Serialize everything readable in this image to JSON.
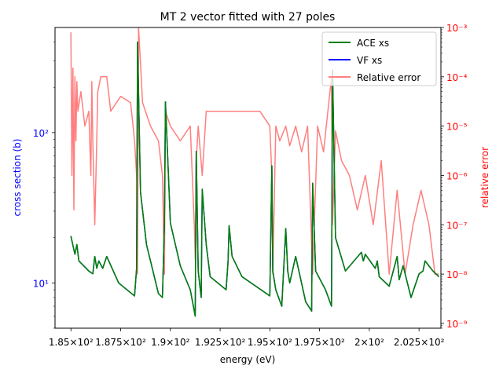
{
  "chart_data": {
    "type": "line",
    "title": "MT 2 vector fitted with 27 poles",
    "xlabel": "energy (eV)",
    "ylabel_left": "cross section (b)",
    "ylabel_right": "relative error",
    "xlim": [
      184.2,
      203.6
    ],
    "ylim_left": [
      5.0,
      500.0
    ],
    "ylim_right": [
      8e-10,
      0.001
    ],
    "yscale_left": "log",
    "yscale_right": "log",
    "grid": false,
    "legend_position": "top-right",
    "x_ticks": [
      {
        "value": 185.0,
        "label": "1.85×10²"
      },
      {
        "value": 187.5,
        "label": "1.875×10²"
      },
      {
        "value": 190.0,
        "label": "1.9×10²"
      },
      {
        "value": 192.5,
        "label": "1.925×10²"
      },
      {
        "value": 195.0,
        "label": "1.95×10²"
      },
      {
        "value": 197.5,
        "label": "1.975×10²"
      },
      {
        "value": 200.0,
        "label": "2×10²"
      },
      {
        "value": 202.5,
        "label": "2.025×10²"
      }
    ],
    "y_left_ticks": [
      {
        "value": 10,
        "label": "10¹"
      },
      {
        "value": 100,
        "label": "10²"
      }
    ],
    "y_right_ticks": [
      {
        "value": 1e-09,
        "label": "10⁻⁹"
      },
      {
        "value": 1e-08,
        "label": "10⁻⁸"
      },
      {
        "value": 1e-07,
        "label": "10⁻⁷"
      },
      {
        "value": 1e-06,
        "label": "10⁻⁶"
      },
      {
        "value": 1e-05,
        "label": "10⁻⁵"
      },
      {
        "value": 0.0001,
        "label": "10⁻⁴"
      },
      {
        "value": 0.001,
        "label": "10⁻³"
      }
    ],
    "colors": {
      "ace": "#008000",
      "vf": "#0000ff",
      "error": "#ff7f7f",
      "left_axis": "#0000ff",
      "right_axis": "#ff0000"
    },
    "series": [
      {
        "name": "ACE xs",
        "axis": "left",
        "x": [
          185.0,
          185.2,
          185.3,
          185.4,
          185.9,
          186.1,
          186.2,
          186.3,
          186.4,
          186.6,
          186.8,
          187.4,
          188.2,
          188.3,
          188.35,
          188.5,
          188.8,
          189.4,
          189.6,
          189.7,
          189.75,
          190.0,
          190.5,
          191.0,
          191.2,
          191.25,
          191.3,
          191.4,
          191.55,
          191.6,
          191.8,
          192.0,
          192.8,
          192.9,
          192.95,
          193.1,
          193.6,
          194.3,
          195.0,
          195.1,
          195.15,
          195.3,
          195.6,
          195.8,
          195.9,
          196.0,
          196.3,
          196.8,
          197.1,
          197.15,
          197.3,
          197.8,
          198.1,
          198.15,
          198.3,
          198.8,
          199.6,
          199.7,
          199.8,
          200.3,
          200.4,
          200.5,
          201.0,
          201.4,
          201.5,
          201.7,
          202.1,
          202.5,
          202.7,
          202.8,
          203.2,
          203.5
        ],
        "y": [
          20.5,
          15.5,
          18.0,
          14.0,
          12.0,
          11.5,
          15.0,
          12.5,
          14.0,
          12.5,
          15.0,
          10.0,
          8.2,
          12.5,
          400.0,
          40.0,
          18.0,
          8.5,
          8.0,
          25.0,
          160.0,
          25.0,
          13.0,
          9.0,
          6.5,
          6.0,
          75.0,
          12.0,
          8.0,
          42.0,
          18.0,
          11.0,
          9.0,
          14.0,
          24.0,
          15.0,
          11.0,
          9.5,
          8.2,
          60.0,
          12.0,
          9.0,
          7.0,
          23.0,
          12.0,
          10.0,
          15.0,
          7.5,
          6.5,
          46.0,
          12.0,
          9.0,
          7.0,
          260.0,
          20.0,
          12.0,
          16.0,
          14.0,
          15.5,
          12.5,
          14.0,
          11.0,
          9.5,
          15.0,
          10.5,
          13.0,
          8.0,
          11.5,
          12.0,
          14.0,
          12.0,
          11.0
        ]
      },
      {
        "name": "VF xs",
        "axis": "left",
        "x": [
          185.0,
          185.2,
          185.3,
          185.4,
          185.9,
          186.1,
          186.2,
          186.3,
          186.4,
          186.6,
          186.8,
          187.4,
          188.2,
          188.3,
          188.35,
          188.5,
          188.8,
          189.4,
          189.6,
          189.7,
          189.75,
          190.0,
          190.5,
          191.0,
          191.2,
          191.25,
          191.3,
          191.4,
          191.55,
          191.6,
          191.8,
          192.0,
          192.8,
          192.9,
          192.95,
          193.1,
          193.6,
          194.3,
          195.0,
          195.1,
          195.15,
          195.3,
          195.6,
          195.8,
          195.9,
          196.0,
          196.3,
          196.8,
          197.1,
          197.15,
          197.3,
          197.8,
          198.1,
          198.15,
          198.3,
          198.8,
          199.6,
          199.7,
          199.8,
          200.3,
          200.4,
          200.5,
          201.0,
          201.4,
          201.5,
          201.7,
          202.1,
          202.5,
          202.7,
          202.8,
          203.2,
          203.5
        ],
        "y": [
          20.5,
          15.5,
          18.0,
          14.0,
          12.0,
          11.5,
          15.0,
          12.5,
          14.0,
          12.5,
          15.0,
          10.0,
          8.2,
          12.5,
          400.0,
          40.0,
          18.0,
          8.5,
          8.0,
          25.0,
          160.0,
          25.0,
          13.0,
          9.0,
          6.5,
          6.0,
          75.0,
          12.0,
          8.0,
          42.0,
          18.0,
          11.0,
          9.0,
          14.0,
          24.0,
          15.0,
          11.0,
          9.5,
          8.2,
          60.0,
          12.0,
          9.0,
          7.0,
          23.0,
          12.0,
          10.0,
          15.0,
          7.5,
          6.5,
          46.0,
          12.0,
          9.0,
          7.0,
          260.0,
          20.0,
          12.0,
          16.0,
          14.0,
          15.5,
          12.5,
          14.0,
          11.0,
          9.5,
          15.0,
          10.5,
          13.0,
          8.0,
          11.5,
          12.0,
          14.0,
          12.0,
          11.0
        ]
      },
      {
        "name": "Relative error",
        "axis": "right",
        "x": [
          185.0,
          185.05,
          185.1,
          185.15,
          185.2,
          185.25,
          185.3,
          185.35,
          185.5,
          185.7,
          185.9,
          186.0,
          186.05,
          186.1,
          186.2,
          186.3,
          186.35,
          186.5,
          186.8,
          187.0,
          187.5,
          188.0,
          188.2,
          188.3,
          188.35,
          188.4,
          188.6,
          189.0,
          189.4,
          189.6,
          189.7,
          189.75,
          190.0,
          190.5,
          191.0,
          191.2,
          191.25,
          191.3,
          191.4,
          191.6,
          191.8,
          192.5,
          193.5,
          194.5,
          195.0,
          195.1,
          195.15,
          195.3,
          195.5,
          195.8,
          196.0,
          196.3,
          196.6,
          196.9,
          197.15,
          197.4,
          197.7,
          198.1,
          198.15,
          198.3,
          198.6,
          199.0,
          199.4,
          199.8,
          200.2,
          200.6,
          201.0,
          201.4,
          201.8,
          202.2,
          202.6,
          203.0,
          203.3,
          203.5
        ],
        "y": [
          0.0008,
          1e-06,
          0.00015,
          2e-07,
          0.0001,
          5e-06,
          8e-05,
          2e-05,
          5e-05,
          1e-05,
          2e-05,
          1e-06,
          8e-05,
          5e-06,
          1e-07,
          5e-06,
          5e-05,
          0.0001,
          0.0001,
          2e-05,
          4e-05,
          3e-05,
          5e-06,
          1e-06,
          1e-08,
          0.001,
          3e-05,
          1e-05,
          5e-06,
          1e-06,
          1e-08,
          2e-05,
          1e-05,
          5e-06,
          1e-05,
          1e-07,
          2e-08,
          2e-06,
          1e-05,
          1e-06,
          2e-05,
          2e-05,
          2e-05,
          2e-05,
          1e-05,
          1e-06,
          1e-08,
          1e-05,
          5e-06,
          1e-05,
          4e-06,
          1e-05,
          3e-06,
          1e-05,
          1e-08,
          1e-05,
          3e-06,
          0.0001,
          1e-07,
          8e-06,
          2e-06,
          1e-06,
          2e-07,
          1e-06,
          1e-07,
          2e-06,
          1e-08,
          5e-07,
          1e-08,
          1e-07,
          5e-07,
          1e-07,
          1e-08,
          1e-08
        ]
      }
    ]
  }
}
